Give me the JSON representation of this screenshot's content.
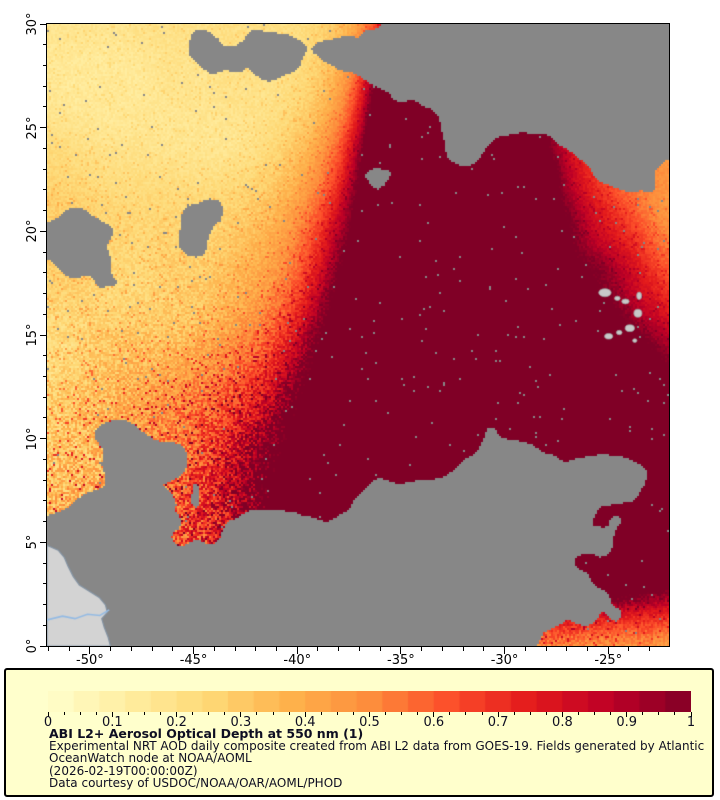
{
  "window": {
    "background": "#ffffff"
  },
  "map_plot": {
    "x_axis": {
      "tick_labels": [
        "-50°",
        "-45°",
        "-40°",
        "-35°",
        "-30°",
        "-25°"
      ],
      "tick_values": [
        -50,
        -45,
        -40,
        -35,
        -30,
        -25
      ],
      "range": [
        -52.07,
        -22.07
      ],
      "minor_step": 1
    },
    "y_axis": {
      "tick_labels": [
        "30°",
        "25°",
        "20°",
        "15°",
        "10°",
        "5°",
        "0°"
      ],
      "tick_values": [
        30,
        25,
        20,
        15,
        10,
        5,
        0
      ],
      "range": [
        0,
        30
      ],
      "minor_step": 1
    }
  },
  "legend": {
    "background": "#ffffcc",
    "border_color": "#000000",
    "text_color": "#0e0e22",
    "title": "ABI L2+ Aerosol Optical Depth at 550 nm (1)",
    "description_lines": [
      "Experimental NRT AOD daily composite created from ABI L2 data from GOES-19. Fields generated by Atlantic",
      "OceanWatch node at NOAA/AOML"
    ],
    "timestamp": "(2026-02-19T00:00:00Z)",
    "credit": "Data courtesy of USDOC/NOAA/OAR/AOML/PHOD",
    "colorbar": {
      "tick_labels": [
        "0",
        "0.1",
        "0.2",
        "0.3",
        "0.4",
        "0.5",
        "0.6",
        "0.7",
        "0.8",
        "0.9",
        "1"
      ],
      "tick_values": [
        0,
        0.1,
        0.2,
        0.3,
        0.4,
        0.5,
        0.6,
        0.7,
        0.8,
        0.9,
        1
      ],
      "range": [
        0,
        1
      ],
      "minor_step": 0.025,
      "steps": 25
    }
  },
  "chart_data": {
    "type": "heatmap",
    "title": "ABI L2+ Aerosol Optical Depth at 550 nm (1)",
    "variable": "Aerosol Optical Depth at 550 nm",
    "source": "ABI L2 data from GOES-19",
    "time": "2026-02-19T00:00:00Z",
    "xlim": [
      -52.07,
      -22.07
    ],
    "ylim": [
      0,
      30
    ],
    "x_ticks": [
      -50,
      -45,
      -40,
      -35,
      -30,
      -25
    ],
    "y_ticks": [
      0,
      5,
      10,
      15,
      20,
      25,
      30
    ],
    "colorbar_range": [
      0,
      1
    ],
    "colorbar_ticks": [
      0,
      0.1,
      0.2,
      0.3,
      0.4,
      0.5,
      0.6,
      0.7,
      0.8,
      0.9,
      1
    ],
    "colormap": {
      "name": "YlOrRd",
      "stops": [
        [
          0.0,
          "#ffffcc"
        ],
        [
          0.125,
          "#ffeda0"
        ],
        [
          0.25,
          "#fed976"
        ],
        [
          0.375,
          "#feb24c"
        ],
        [
          0.5,
          "#fd8d3c"
        ],
        [
          0.625,
          "#fc4e2a"
        ],
        [
          0.75,
          "#e31a1c"
        ],
        [
          0.875,
          "#bd0026"
        ],
        [
          1.0,
          "#800026"
        ]
      ]
    },
    "no_data_color": "#878787",
    "land_color": "#d3d3d3",
    "coast_color": "#8494a4",
    "river_color": "#94bbe4",
    "island_color": "#c9c9c9",
    "features": {
      "base_value": 0.16,
      "plume_blobs": [
        {
          "x": 0.6,
          "y": 0.42,
          "rx": 0.13,
          "ry": 0.24,
          "a": 1.0
        },
        {
          "x": 0.8,
          "y": 0.62,
          "rx": 0.26,
          "ry": 0.18,
          "a": 0.95
        },
        {
          "x": 0.58,
          "y": 0.8,
          "rx": 0.2,
          "ry": 0.12,
          "a": 0.9
        },
        {
          "x": 0.585,
          "y": 0.1,
          "rx": 0.05,
          "ry": 0.13,
          "a": 0.85
        },
        {
          "x": 0.7,
          "y": 0.22,
          "rx": 0.1,
          "ry": 0.1,
          "a": 0.8
        },
        {
          "x": 0.95,
          "y": 0.8,
          "rx": 0.15,
          "ry": 0.12,
          "a": 0.85
        }
      ],
      "warm_blobs": [
        {
          "x": 0.92,
          "y": 0.32,
          "rx": 0.22,
          "ry": 0.26,
          "a": 0.33
        },
        {
          "x": 0.84,
          "y": 0.03,
          "rx": 0.07,
          "ry": 0.05,
          "a": 0.55
        },
        {
          "x": 0.25,
          "y": 0.95,
          "rx": 0.38,
          "ry": 0.26,
          "a": 0.3
        },
        {
          "x": 0.08,
          "y": 0.32,
          "rx": 0.22,
          "ry": 0.09,
          "a": 0.1
        },
        {
          "x": 0.45,
          "y": 0.62,
          "rx": 0.18,
          "ry": 0.14,
          "a": 0.22
        }
      ],
      "speckle_zone": {
        "x": 0.28,
        "y": 0.9,
        "rx": 0.34,
        "ry": 0.24,
        "a": 1.0
      },
      "cloud_threshold": 0.72,
      "cloud_blobs": [
        {
          "x": 0.82,
          "y": 0.1,
          "rx": 0.22,
          "ry": 0.13,
          "a": 0.5
        },
        {
          "x": 0.6,
          "y": 0.04,
          "rx": 0.1,
          "ry": 0.05,
          "a": 0.3
        },
        {
          "x": 0.38,
          "y": 0.05,
          "rx": 0.09,
          "ry": 0.05,
          "a": 0.28
        },
        {
          "x": 0.47,
          "y": 0.28,
          "rx": 0.07,
          "ry": 0.06,
          "a": 0.3
        },
        {
          "x": 0.685,
          "y": 0.17,
          "rx": 0.03,
          "ry": 0.08,
          "a": 0.32
        },
        {
          "x": 0.3,
          "y": 0.95,
          "rx": 0.3,
          "ry": 0.13,
          "a": 0.55
        },
        {
          "x": 0.72,
          "y": 0.93,
          "rx": 0.24,
          "ry": 0.11,
          "a": 0.5
        },
        {
          "x": 0.85,
          "y": 0.74,
          "rx": 0.09,
          "ry": 0.05,
          "a": 0.28
        },
        {
          "x": 0.5,
          "y": 0.73,
          "rx": 0.05,
          "ry": 0.04,
          "a": 0.22
        },
        {
          "x": 0.17,
          "y": 0.68,
          "rx": 0.1,
          "ry": 0.035,
          "a": 0.18
        },
        {
          "x": 0.05,
          "y": 0.9,
          "rx": 0.07,
          "ry": 0.06,
          "a": 0.35
        }
      ],
      "land_polygon": [
        [
          0,
          0.838
        ],
        [
          0.018,
          0.846
        ],
        [
          0.028,
          0.858
        ],
        [
          0.034,
          0.872
        ],
        [
          0.042,
          0.888
        ],
        [
          0.052,
          0.902
        ],
        [
          0.068,
          0.912
        ],
        [
          0.084,
          0.922
        ],
        [
          0.094,
          0.934
        ],
        [
          0.097,
          0.946
        ],
        [
          0.088,
          0.956
        ],
        [
          0.092,
          0.97
        ],
        [
          0.098,
          0.985
        ],
        [
          0.102,
          1.0
        ],
        [
          0,
          1.0
        ]
      ],
      "river_polyline": [
        [
          0,
          0.958
        ],
        [
          0.025,
          0.952
        ],
        [
          0.045,
          0.956
        ],
        [
          0.065,
          0.949
        ],
        [
          0.085,
          0.951
        ],
        [
          0.1,
          0.942
        ]
      ],
      "islands": [
        [
          0.897,
          0.432,
          0.02,
          0.013
        ],
        [
          0.917,
          0.441,
          0.009,
          0.007
        ],
        [
          0.93,
          0.446,
          0.012,
          0.008
        ],
        [
          0.952,
          0.437,
          0.008,
          0.012
        ],
        [
          0.95,
          0.465,
          0.013,
          0.013
        ],
        [
          0.937,
          0.489,
          0.015,
          0.011
        ],
        [
          0.92,
          0.496,
          0.009,
          0.007
        ],
        [
          0.903,
          0.502,
          0.013,
          0.009
        ],
        [
          0.945,
          0.509,
          0.007,
          0.006
        ]
      ]
    }
  }
}
